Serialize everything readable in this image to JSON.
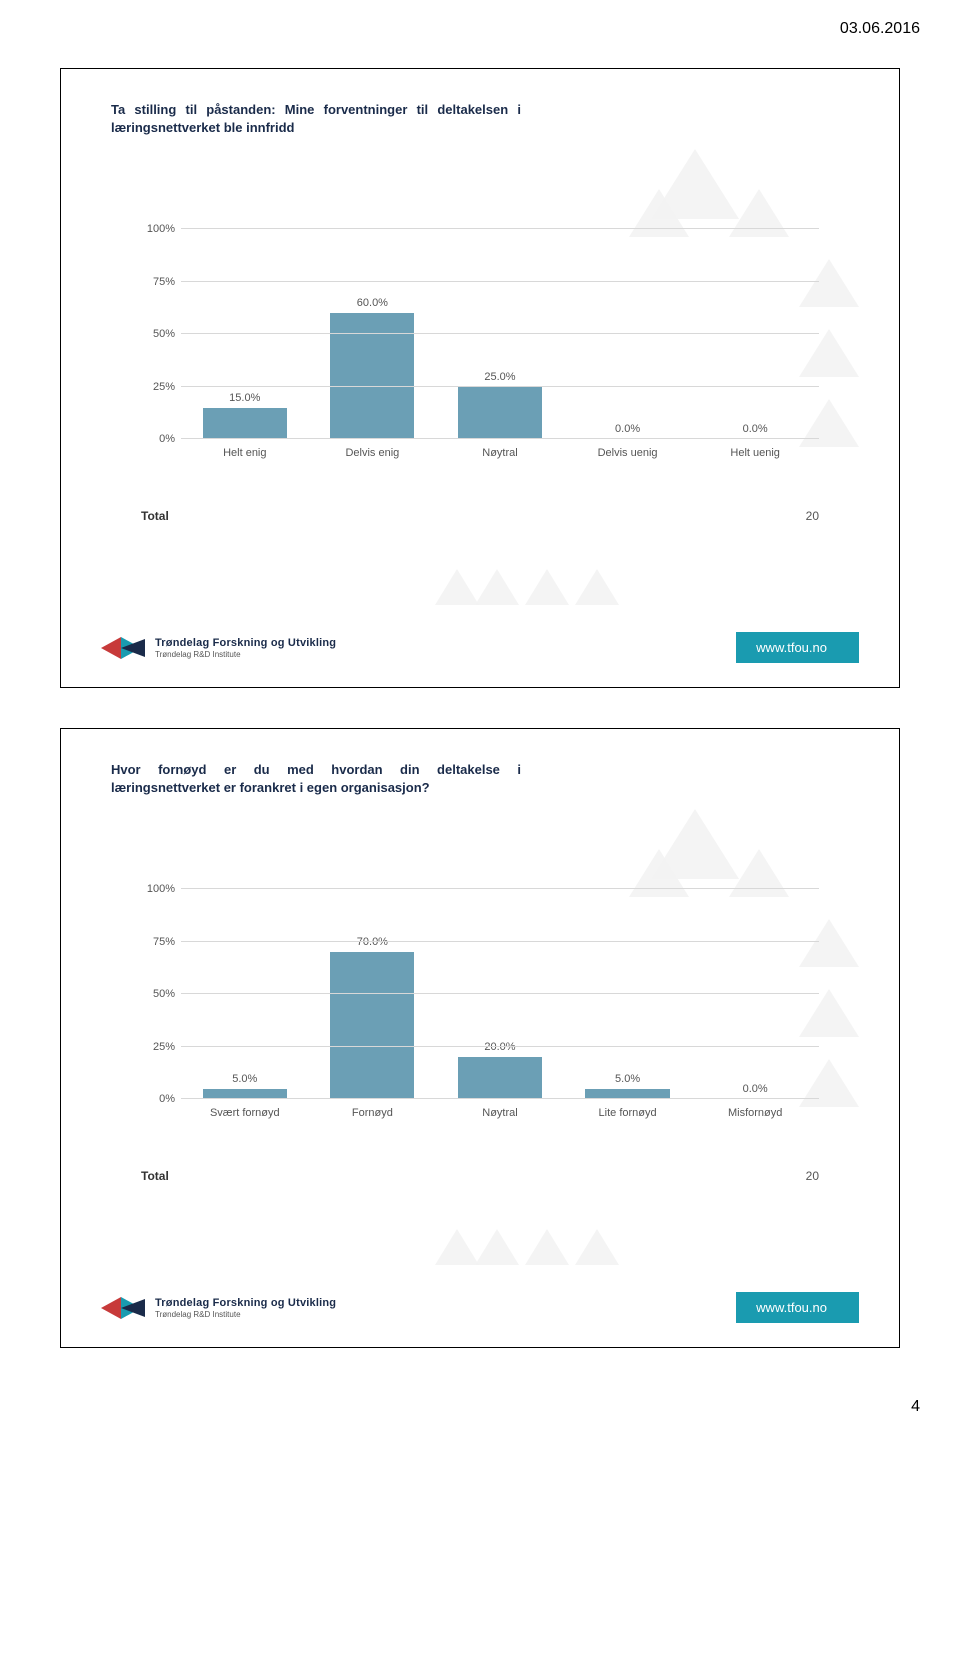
{
  "page_date": "03.06.2016",
  "page_number": "4",
  "link_text": "www.tfou.no",
  "logo": {
    "title": "Trøndelag Forskning og Utvikling",
    "subtitle": "Trøndelag R&D Institute"
  },
  "colors": {
    "bar": "#6b9fb5",
    "grid": "#d8d8d8",
    "badge": "#1a9bb0",
    "title": "#1a2b4a",
    "logo_red": "#c73a3a",
    "logo_teal": "#1a9bb0",
    "logo_navy": "#1a2b4a"
  },
  "charts": [
    {
      "title": "Ta stilling til påstanden: Mine forventninger til deltakelsen i læringsnettverket ble innfridd",
      "type": "bar",
      "ylim": [
        0,
        100
      ],
      "ytick_step": 25,
      "ylabels": [
        "0%",
        "25%",
        "50%",
        "75%",
        "100%"
      ],
      "categories": [
        "Helt enig",
        "Delvis enig",
        "Nøytral",
        "Delvis uenig",
        "Helt uenig"
      ],
      "values": [
        15.0,
        60.0,
        25.0,
        0.0,
        0.0
      ],
      "value_labels": [
        "15.0%",
        "60.0%",
        "25.0%",
        "0.0%",
        "0.0%"
      ],
      "total_label": "Total",
      "total_value": "20"
    },
    {
      "title": "Hvor fornøyd er du med hvordan din deltakelse i læringsnettverket er forankret i egen organisasjon?",
      "type": "bar",
      "ylim": [
        0,
        100
      ],
      "ytick_step": 25,
      "ylabels": [
        "0%",
        "25%",
        "50%",
        "75%",
        "100%"
      ],
      "categories": [
        "Svært fornøyd",
        "Fornøyd",
        "Nøytral",
        "Lite fornøyd",
        "Misfornøyd"
      ],
      "values": [
        5.0,
        70.0,
        20.0,
        5.0,
        0.0
      ],
      "value_labels": [
        "5.0%",
        "70.0%",
        "20.0%",
        "5.0%",
        "0.0%"
      ],
      "total_label": "Total",
      "total_value": "20"
    }
  ]
}
